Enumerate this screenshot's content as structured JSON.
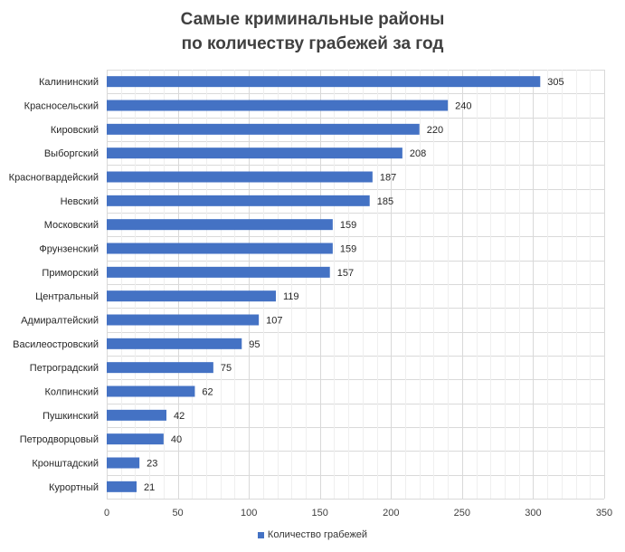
{
  "chart_data": {
    "type": "bar",
    "orientation": "horizontal",
    "title_lines": [
      "Самые криминальные районы",
      "по количеству грабежей за год"
    ],
    "categories": [
      "Калининский",
      "Красносельский",
      "Кировский",
      "Выборгский",
      "Красногвардейский",
      "Невский",
      "Московский",
      "Фрунзенский",
      "Приморский",
      "Центральный",
      "Адмиралтейский",
      "Василеостровский",
      "Петроградский",
      "Колпинский",
      "Пушкинский",
      "Петродворцовый",
      "Кронштадский",
      "Курортный"
    ],
    "series": [
      {
        "name": "Количество грабежей",
        "values": [
          305,
          240,
          220,
          208,
          187,
          185,
          159,
          159,
          157,
          119,
          107,
          95,
          75,
          62,
          42,
          40,
          23,
          21
        ]
      }
    ],
    "xlim": [
      0,
      350
    ],
    "xticks": [
      0,
      50,
      100,
      150,
      200,
      250,
      300,
      350
    ],
    "grid": true,
    "data_labels": true,
    "legend": "bottom",
    "bar_color": "#4472c4",
    "grid_color": "#d9d9d9"
  }
}
